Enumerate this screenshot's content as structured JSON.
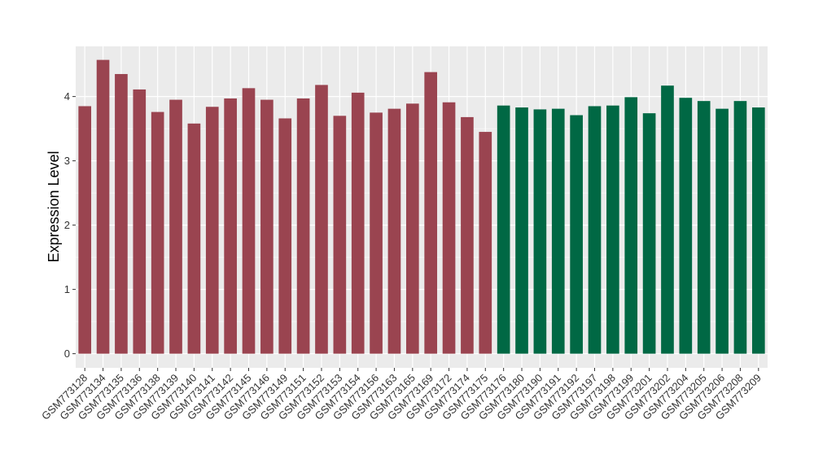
{
  "chart_data": {
    "type": "bar",
    "title": "",
    "xlabel": "",
    "ylabel": "Expression Level",
    "ylim": [
      -0.22,
      4.78
    ],
    "yticks": [
      0,
      1,
      2,
      3,
      4
    ],
    "grid": true,
    "legend": "none",
    "colors": {
      "group1": "#9a4450",
      "group2": "#006844",
      "panel": "#ebebeb",
      "grid": "#ffffff"
    },
    "categories": [
      "GSM773128",
      "GSM773134",
      "GSM773135",
      "GSM773136",
      "GSM773138",
      "GSM773139",
      "GSM773140",
      "GSM773141",
      "GSM773142",
      "GSM773145",
      "GSM773146",
      "GSM773149",
      "GSM773151",
      "GSM773152",
      "GSM773153",
      "GSM773154",
      "GSM773156",
      "GSM773163",
      "GSM773165",
      "GSM773169",
      "GSM773172",
      "GSM773174",
      "GSM773175",
      "GSM773176",
      "GSM773180",
      "GSM773190",
      "GSM773191",
      "GSM773192",
      "GSM773197",
      "GSM773198",
      "GSM773199",
      "GSM773201",
      "GSM773202",
      "GSM773204",
      "GSM773205",
      "GSM773206",
      "GSM773208",
      "GSM773209"
    ],
    "values": [
      3.85,
      4.57,
      4.35,
      4.11,
      3.76,
      3.95,
      3.58,
      3.84,
      3.97,
      4.13,
      3.95,
      3.66,
      3.97,
      4.18,
      3.7,
      4.06,
      3.75,
      3.81,
      3.89,
      4.38,
      3.91,
      3.68,
      3.45,
      3.86,
      3.83,
      3.8,
      3.81,
      3.71,
      3.85,
      3.86,
      3.99,
      3.74,
      4.17,
      3.98,
      3.93,
      3.81,
      3.93,
      3.83
    ],
    "groups": [
      1,
      1,
      1,
      1,
      1,
      1,
      1,
      1,
      1,
      1,
      1,
      1,
      1,
      1,
      1,
      1,
      1,
      1,
      1,
      1,
      1,
      1,
      1,
      2,
      2,
      2,
      2,
      2,
      2,
      2,
      2,
      2,
      2,
      2,
      2,
      2,
      2,
      2
    ]
  }
}
